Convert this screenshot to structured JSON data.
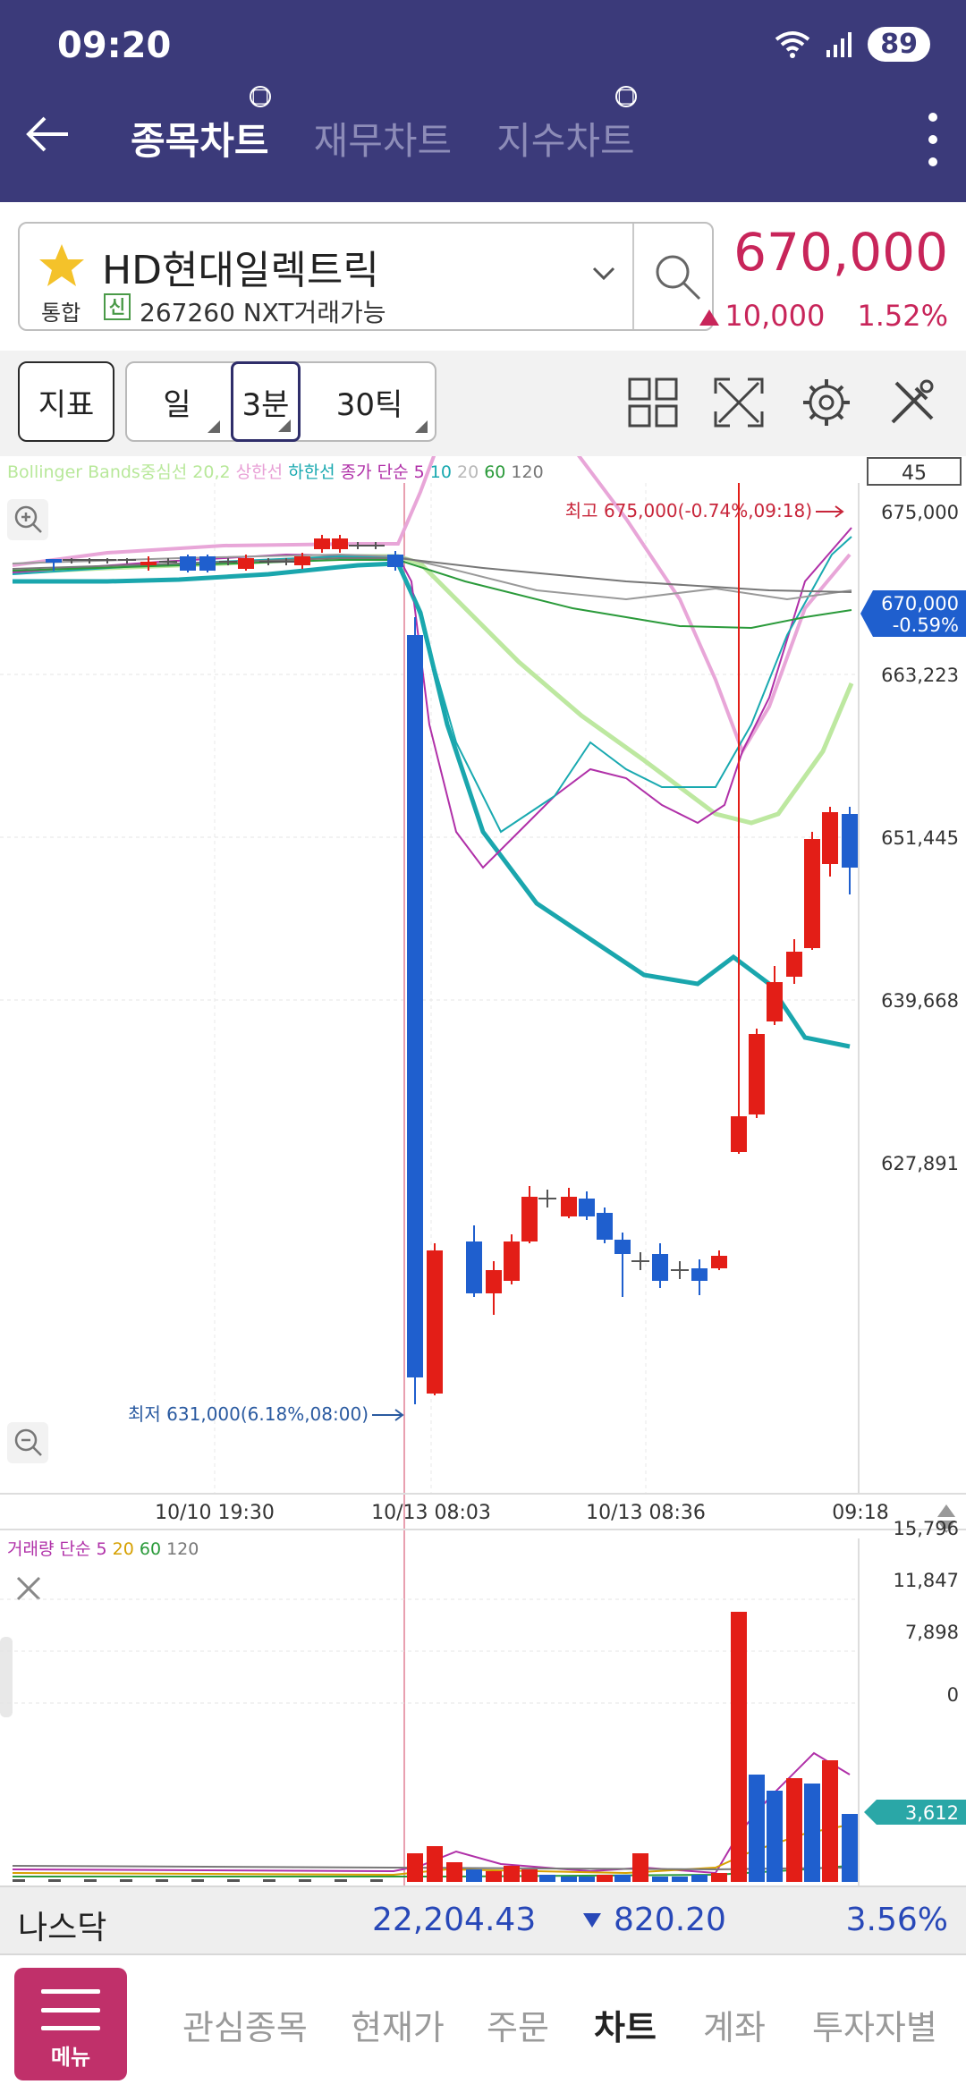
{
  "status": {
    "time": "09:20",
    "battery": "89"
  },
  "header": {
    "tabs": [
      {
        "label": "종목차트",
        "active": true
      },
      {
        "label": "재무차트",
        "active": false
      },
      {
        "label": "지수차트",
        "active": false
      }
    ]
  },
  "stock": {
    "name": "HD현대일렉트릭",
    "market_tag": "통합",
    "credit_tag": "신",
    "code_info": "267260 NXT거래가능",
    "price": "670,000",
    "change": "10,000",
    "change_pct": "1.52%"
  },
  "toolbar": {
    "indicator_label": "지표",
    "periods": [
      {
        "label": "일",
        "selected": false
      },
      {
        "label": "3분",
        "selected": true
      },
      {
        "label": "30틱",
        "selected": false
      }
    ]
  },
  "chart": {
    "legend": [
      {
        "text": "Bollinger Bands중심선 20,2",
        "color": "#b8e89a"
      },
      {
        "text": "상한선",
        "color": "#e8a0d6"
      },
      {
        "text": "하한선",
        "color": "#19a9b0"
      },
      {
        "text": "종가 단순",
        "color": "#b030a8"
      },
      {
        "text": "5",
        "color": "#b030a8"
      },
      {
        "text": "10",
        "color": "#19a9b0"
      },
      {
        "text": "20",
        "color": "#b8b8b8"
      },
      {
        "text": "60",
        "color": "#2a9a3a"
      },
      {
        "text": "120",
        "color": "#777777"
      }
    ],
    "count_box": "45",
    "high_label": "최고 675,000(-0.74%,09:18)",
    "low_label": "최저 631,000(6.18%,08:00)",
    "current_price": "670,000",
    "current_pct": "-0.59%",
    "y_ticks": [
      "675,000",
      "663,223",
      "651,445",
      "639,668",
      "627,891"
    ],
    "x_ticks": [
      "10/10 19:30",
      "10/13 08:03",
      "10/13 08:36",
      "09:18"
    ],
    "up_color": "#e31e17",
    "down_color": "#1f5fce"
  },
  "volume": {
    "legend": [
      {
        "text": "거래량 단순",
        "color": "#b030a8"
      },
      {
        "text": "5",
        "color": "#b030a8"
      },
      {
        "text": "20",
        "color": "#d6a000"
      },
      {
        "text": "60",
        "color": "#2a9a3a"
      },
      {
        "text": "120",
        "color": "#777777"
      }
    ],
    "y_ticks": [
      "15,796",
      "11,847",
      "7,898",
      "0"
    ],
    "current": "3,612"
  },
  "index_bar": {
    "name": "나스닥",
    "value": "22,204.43",
    "change": "820.20",
    "pct": "3.56%"
  },
  "bottom_nav": {
    "menu_label": "메뉴",
    "items": [
      {
        "label": "관심종목",
        "active": false
      },
      {
        "label": "현재가",
        "active": false
      },
      {
        "label": "주문",
        "active": false
      },
      {
        "label": "차트",
        "active": true
      },
      {
        "label": "계좌",
        "active": false
      },
      {
        "label": "투자자별",
        "active": false
      }
    ]
  }
}
